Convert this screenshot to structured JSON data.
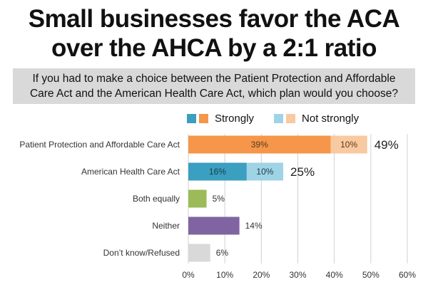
{
  "title_line1": "Small businesses favor the ACA",
  "title_line2": "over the AHCA by a 2:1 ratio",
  "question": "If you had to make a choice between the Patient Protection and Affordable Care Act and the American Health Care Act, which plan would you choose?",
  "legend": {
    "strongly": "Strongly",
    "not_strongly": "Not strongly",
    "colors": {
      "aca_strong": "#f5964a",
      "aca_not": "#f9c9a0",
      "ahca_strong": "#3a9fc0",
      "ahca_not": "#9fd3e6"
    }
  },
  "chart_data": {
    "type": "bar",
    "orientation": "horizontal",
    "stacked": true,
    "categories": [
      "Patient Protection and Affordable Care Act",
      "American Health Care Act",
      "Both equally",
      "Neither",
      "Don’t know/Refused"
    ],
    "series": [
      {
        "name": "Strongly",
        "values": [
          39,
          16,
          5,
          14,
          6
        ]
      },
      {
        "name": "Not strongly",
        "values": [
          10,
          10,
          0,
          0,
          0
        ]
      }
    ],
    "segment_labels": [
      [
        "39%",
        "10%"
      ],
      [
        "16%",
        "10%"
      ],
      [
        "5%"
      ],
      [
        "14%"
      ],
      [
        "6%"
      ]
    ],
    "totals": [
      "49%",
      "25%",
      "",
      "",
      ""
    ],
    "colors": [
      [
        "#f5964a",
        "#f9c9a0"
      ],
      [
        "#3a9fc0",
        "#9fd3e6"
      ],
      [
        "#9bbb59"
      ],
      [
        "#8064a2"
      ],
      [
        "#d9d9d9"
      ]
    ],
    "xlim": [
      0,
      60
    ],
    "xticks": [
      "0%",
      "10%",
      "20%",
      "30%",
      "40%",
      "50%",
      "60%"
    ],
    "grid": true
  }
}
